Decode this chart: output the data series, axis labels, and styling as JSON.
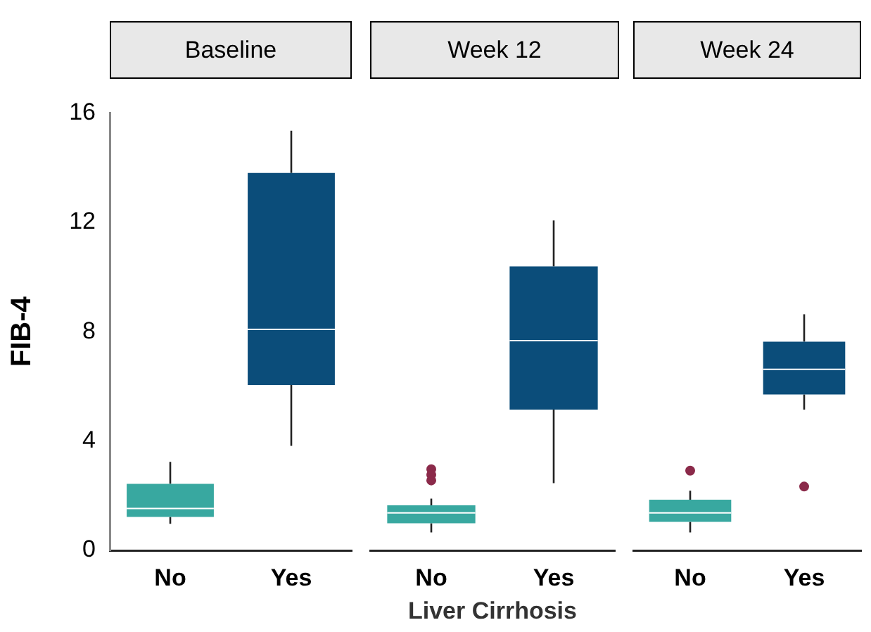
{
  "chart_data": [
    {
      "type": "box",
      "title": "Baseline",
      "ylabel": "FIB-4",
      "categories": [
        "No",
        "Yes"
      ],
      "colors": [
        "#38a8a0",
        "#0b4d7a"
      ],
      "ylim": [
        0,
        16
      ],
      "yticks": [
        0,
        4,
        8,
        12,
        16
      ],
      "grid": false,
      "legend": false,
      "boxes": [
        {
          "low": 0.97,
          "q1": 1.22,
          "median": 1.53,
          "q3": 2.43,
          "high": 3.24
        },
        {
          "low": 3.82,
          "q1": 6.05,
          "median": 8.08,
          "q3": 13.8,
          "high": 15.35
        }
      ]
    },
    {
      "type": "box",
      "title": "Week 12",
      "xlabel": "Liver Cirrhosis",
      "categories": [
        "No",
        "Yes"
      ],
      "colors": [
        "#38a8a0",
        "#0b4d7a"
      ],
      "ylim": [
        0,
        16
      ],
      "grid": false,
      "legend": false,
      "tick_labels": "x",
      "boxes": [
        {
          "low": 0.64,
          "q1": 0.97,
          "median": 1.34,
          "q3": 1.61,
          "high": 1.85,
          "outliers": [
            2.9,
            2.7,
            2.5
          ]
        },
        {
          "low": 2.4,
          "q1": 5.03,
          "median": 7.5,
          "q3": 10.15,
          "high": 11.79
        }
      ]
    },
    {
      "type": "box",
      "title": "Week 24",
      "categories": [
        "No",
        "Yes"
      ],
      "colors": [
        "#38a8a0",
        "#0b4d7a"
      ],
      "ylim": [
        0,
        16
      ],
      "grid": false,
      "legend": false,
      "tick_labels": "x",
      "boxes": [
        {
          "low": 0.64,
          "q1": 1.02,
          "median": 1.34,
          "q3": 1.81,
          "high": 2.13,
          "outliers": [
            2.85
          ]
        },
        {
          "low": 5.03,
          "q1": 5.57,
          "median": 6.47,
          "q3": 7.46,
          "high": 8.44,
          "outliers": [
            2.28
          ]
        }
      ]
    }
  ]
}
